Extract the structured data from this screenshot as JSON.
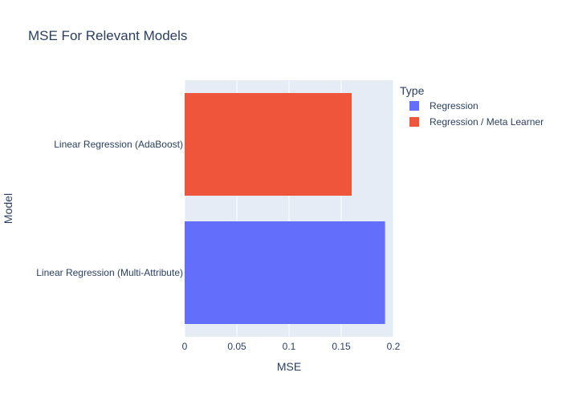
{
  "chart_data": {
    "type": "bar",
    "orientation": "horizontal",
    "title": "MSE For Relevant Models",
    "xlabel": "MSE",
    "ylabel": "Model",
    "xlim": [
      0,
      0.2
    ],
    "xticks": [
      0,
      0.05,
      0.1,
      0.15,
      0.2
    ],
    "xtick_labels": [
      "0",
      "0.05",
      "0.1",
      "0.15",
      "0.2"
    ],
    "grid": true,
    "legend": {
      "title": "Type",
      "placement": "top-right",
      "entries": [
        {
          "name": "Regression",
          "color": "#636efa"
        },
        {
          "name": "Regression / Meta Learner",
          "color": "#ef553b"
        }
      ]
    },
    "categories": [
      "Linear Regression (AdaBoost)",
      "Linear Regression (Multi-Attribute)"
    ],
    "series": [
      {
        "name": "Regression",
        "color": "#636efa",
        "values": [
          null,
          0.192
        ]
      },
      {
        "name": "Regression / Meta Learner",
        "color": "#ef553b",
        "values": [
          0.16,
          null
        ]
      }
    ]
  },
  "colors": {
    "plot_background": "#e5ecf6",
    "grid": "#ffffff",
    "text": "#2a3f5f"
  }
}
